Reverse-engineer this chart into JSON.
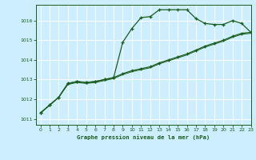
{
  "title": "Graphe pression niveau de la mer (hPa)",
  "bg_color": "#cceeff",
  "grid_color": "#aaddcc",
  "line_color": "#1a5c1a",
  "xlim": [
    -0.5,
    23
  ],
  "ylim": [
    1010.7,
    1016.8
  ],
  "yticks": [
    1011,
    1012,
    1013,
    1014,
    1015,
    1016
  ],
  "xticks": [
    0,
    1,
    2,
    3,
    4,
    5,
    6,
    7,
    8,
    9,
    10,
    11,
    12,
    13,
    14,
    15,
    16,
    17,
    18,
    19,
    20,
    21,
    22,
    23
  ],
  "series1": [
    1011.3,
    1011.7,
    1012.1,
    1012.8,
    1012.9,
    1012.85,
    1012.9,
    1013.0,
    1013.1,
    1014.9,
    1015.6,
    1016.15,
    1016.2,
    1016.55,
    1016.55,
    1016.55,
    1016.55,
    1016.1,
    1015.85,
    1015.8,
    1015.8,
    1016.0,
    1015.85,
    1015.4
  ],
  "series2": [
    1011.3,
    1011.7,
    1012.1,
    1012.8,
    1012.9,
    1012.85,
    1012.9,
    1013.0,
    1013.1,
    1013.3,
    1013.45,
    1013.55,
    1013.65,
    1013.85,
    1014.0,
    1014.15,
    1014.3,
    1014.5,
    1014.7,
    1014.85,
    1015.0,
    1015.2,
    1015.35,
    1015.4
  ],
  "series3": [
    1011.3,
    1011.7,
    1012.1,
    1012.75,
    1012.85,
    1012.8,
    1012.85,
    1012.95,
    1013.05,
    1013.25,
    1013.4,
    1013.5,
    1013.6,
    1013.8,
    1013.95,
    1014.1,
    1014.25,
    1014.45,
    1014.65,
    1014.8,
    1014.95,
    1015.15,
    1015.3,
    1015.35
  ]
}
